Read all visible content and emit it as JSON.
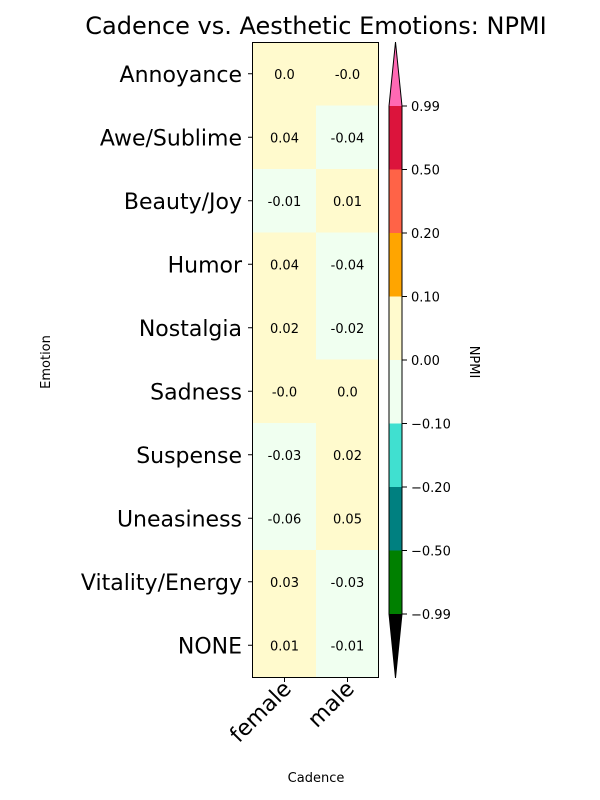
{
  "chart_data": {
    "type": "heatmap",
    "title": "Cadence vs. Aesthetic Emotions: NPMI",
    "xlabel": "Cadence",
    "ylabel": "Emotion",
    "x_categories": [
      "female",
      "male"
    ],
    "y_categories": [
      "Annoyance",
      "Awe/Sublime",
      "Beauty/Joy",
      "Humor",
      "Nostalgia",
      "Sadness",
      "Suspense",
      "Uneasiness",
      "Vitality/Energy",
      "NONE"
    ],
    "values": [
      [
        0.0,
        -0.0
      ],
      [
        0.04,
        -0.04
      ],
      [
        -0.01,
        0.01
      ],
      [
        0.04,
        -0.04
      ],
      [
        0.02,
        -0.02
      ],
      [
        -0.0,
        0.0
      ],
      [
        -0.03,
        0.02
      ],
      [
        -0.06,
        0.05
      ],
      [
        0.03,
        -0.03
      ],
      [
        0.01,
        -0.01
      ]
    ],
    "cell_labels": [
      [
        "0.0",
        "-0.0"
      ],
      [
        "0.04",
        "-0.04"
      ],
      [
        "-0.01",
        "0.01"
      ],
      [
        "0.04",
        "-0.04"
      ],
      [
        "0.02",
        "-0.02"
      ],
      [
        "-0.0",
        "0.0"
      ],
      [
        "-0.03",
        "0.02"
      ],
      [
        "-0.06",
        "0.05"
      ],
      [
        "0.03",
        "-0.03"
      ],
      [
        "0.01",
        "-0.01"
      ]
    ],
    "colorbar": {
      "label": "NPMI",
      "boundaries": [
        -0.99,
        -0.5,
        -0.2,
        -0.1,
        0.0,
        0.1,
        0.2,
        0.5,
        0.99
      ],
      "tick_labels": [
        "−0.99",
        "−0.50",
        "−0.20",
        "−0.10",
        "0.00",
        "0.10",
        "0.20",
        "0.50",
        "0.99"
      ],
      "colors": [
        "#008000",
        "#008080",
        "#40E0D0",
        "#F0FFF0",
        "#FFFACD",
        "#FFA500",
        "#FF6347",
        "#DC143C"
      ],
      "under_color": "#000000",
      "over_color": "#FF69B4",
      "extend": "both"
    }
  }
}
